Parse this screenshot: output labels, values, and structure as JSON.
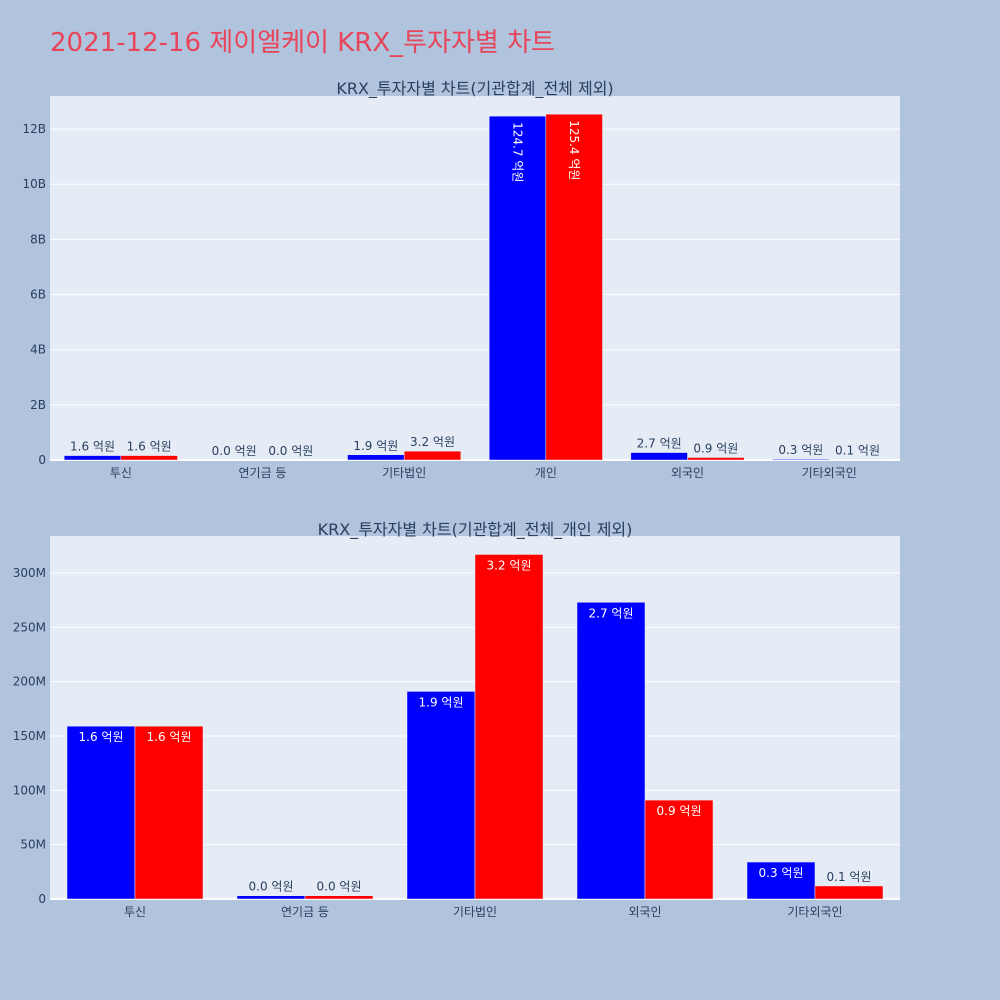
{
  "title": "2021-12-16 제이엘케이 KRX_투자자별 차트",
  "chart_data": [
    {
      "type": "bar",
      "title": "KRX_투자자별 차트(기관합계_전체 제외)",
      "categories": [
        "투신",
        "연기금 등",
        "기타법인",
        "개인",
        "외국인",
        "기타외국인"
      ],
      "y_unit_label": "B",
      "y_tick_values": [
        0,
        2,
        4,
        6,
        8,
        10,
        12
      ],
      "y_tick_labels": [
        "0",
        "2B",
        "4B",
        "6B",
        "8B",
        "10B",
        "12B"
      ],
      "ylim": [
        0,
        13.2
      ],
      "grid": true,
      "series": [
        {
          "color": "#0000ff",
          "values": [
            0.16,
            0.0,
            0.19,
            12.47,
            0.27,
            0.03
          ],
          "labels": [
            "1.6 억원",
            "0.0 억원",
            "1.9 억원",
            "124.7 억원",
            "2.7 억원",
            "0.3 억원"
          ]
        },
        {
          "color": "#ff0000",
          "values": [
            0.16,
            0.0,
            0.32,
            12.54,
            0.09,
            0.01
          ],
          "labels": [
            "1.6 억원",
            "0.0 억원",
            "3.2 억원",
            "125.4 억원",
            "0.9 억원",
            "0.1 억원"
          ]
        }
      ]
    },
    {
      "type": "bar",
      "title": "KRX_투자자별 차트(기관합계_전체_개인 제외)",
      "categories": [
        "투신",
        "연기금 등",
        "기타법인",
        "외국인",
        "기타외국인"
      ],
      "y_tick_values": [
        0,
        50,
        100,
        150,
        200,
        250,
        300
      ],
      "y_tick_labels": [
        "0",
        "50M",
        "100M",
        "150M",
        "200M",
        "250M",
        "300M"
      ],
      "ylim": [
        0,
        334
      ],
      "grid": true,
      "series": [
        {
          "color": "#0000ff",
          "values": [
            159,
            3,
            191,
            273,
            34
          ],
          "labels": [
            "1.6 억원",
            "0.0 억원",
            "1.9 억원",
            "2.7 억원",
            "0.3 억원"
          ]
        },
        {
          "color": "#ff0000",
          "values": [
            159,
            3,
            317,
            91,
            12
          ],
          "labels": [
            "1.6 억원",
            "0.0 억원",
            "3.2 억원",
            "0.9 억원",
            "0.1 억원"
          ]
        }
      ]
    }
  ]
}
